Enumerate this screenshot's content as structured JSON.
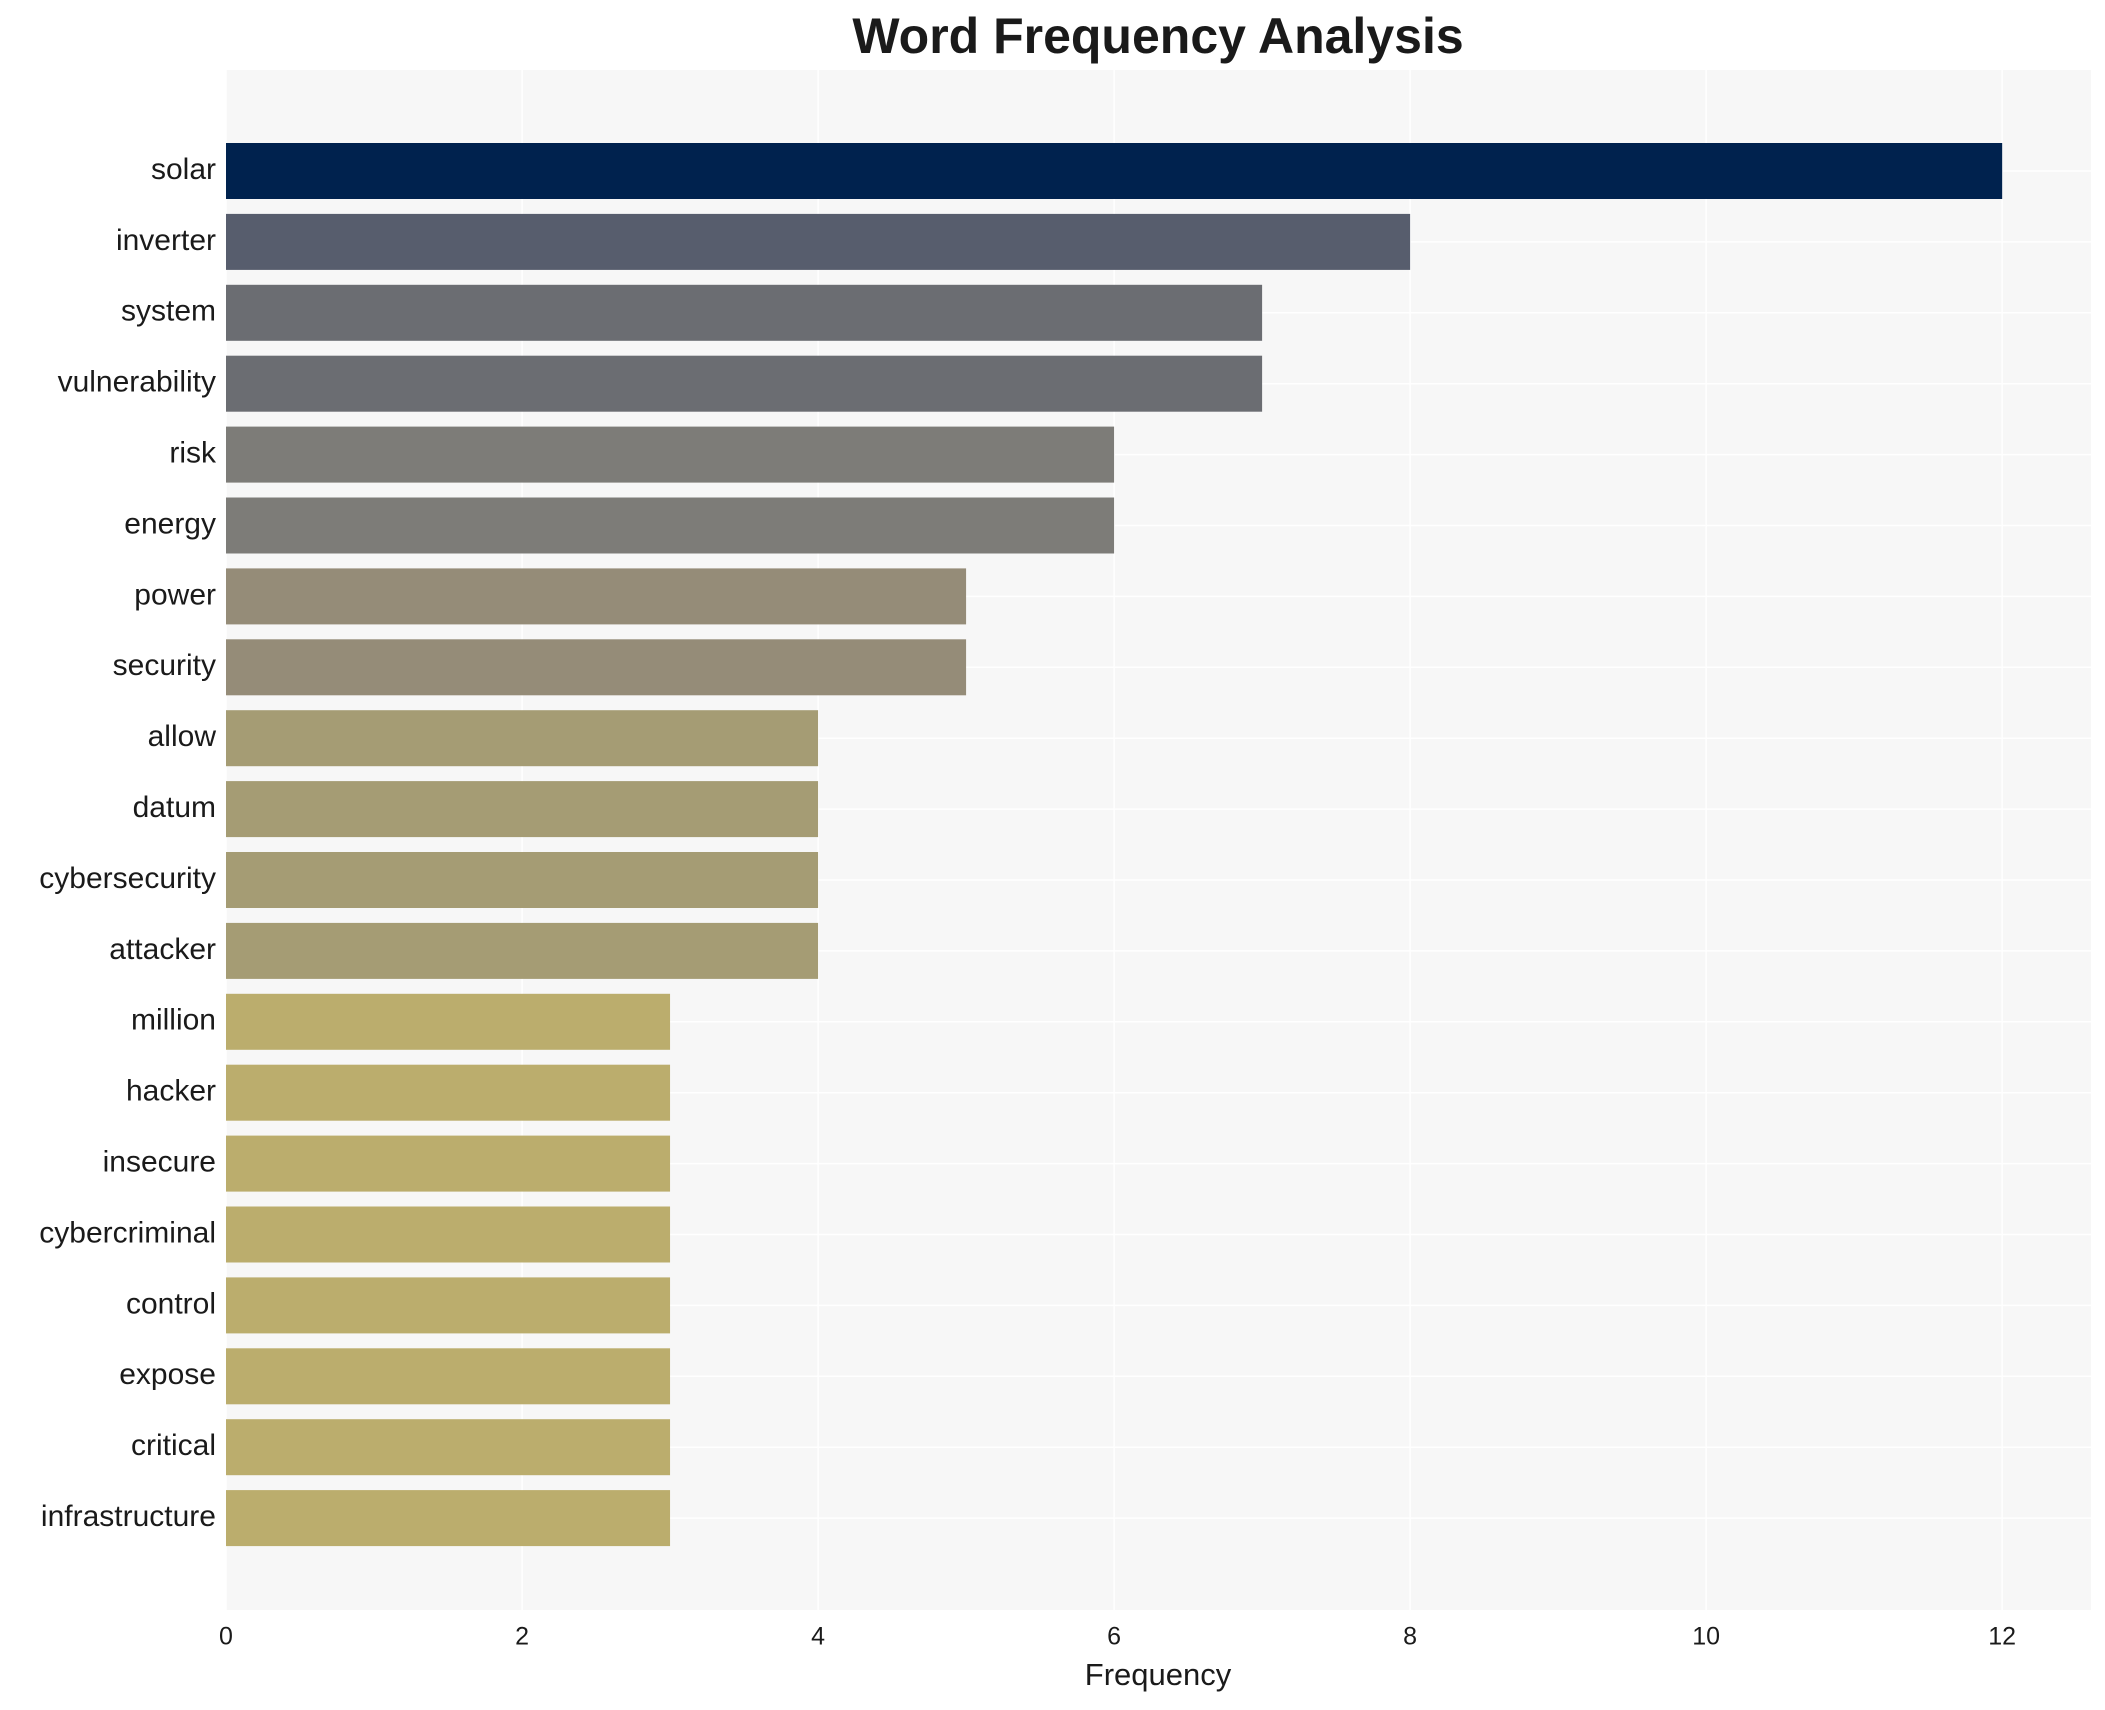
{
  "chart_data": {
    "type": "barh",
    "title": "Word Frequency Analysis",
    "x_label": "Frequency",
    "categories": [
      "solar",
      "inverter",
      "system",
      "vulnerability",
      "risk",
      "energy",
      "power",
      "security",
      "allow",
      "datum",
      "cybersecurity",
      "attacker",
      "million",
      "hacker",
      "insecure",
      "cybercriminal",
      "control",
      "expose",
      "critical",
      "infrastructure"
    ],
    "values": [
      12,
      8,
      7,
      7,
      6,
      6,
      5,
      5,
      4,
      4,
      4,
      4,
      3,
      3,
      3,
      3,
      3,
      3,
      3,
      3
    ],
    "colors": [
      "#00224e",
      "#575d6d",
      "#6b6d72",
      "#6b6d72",
      "#7d7c78",
      "#7d7c78",
      "#958c78",
      "#958c78",
      "#a59c74",
      "#a59c74",
      "#a59c74",
      "#a59c74",
      "#bbad6d",
      "#bbad6d",
      "#bbad6d",
      "#bbad6d",
      "#bbad6d",
      "#bbad6d",
      "#bbad6d",
      "#bbad6d"
    ],
    "xlim": [
      0,
      12.6
    ],
    "xticks": [
      0,
      2,
      4,
      6,
      8,
      10,
      12
    ],
    "grid": true
  }
}
